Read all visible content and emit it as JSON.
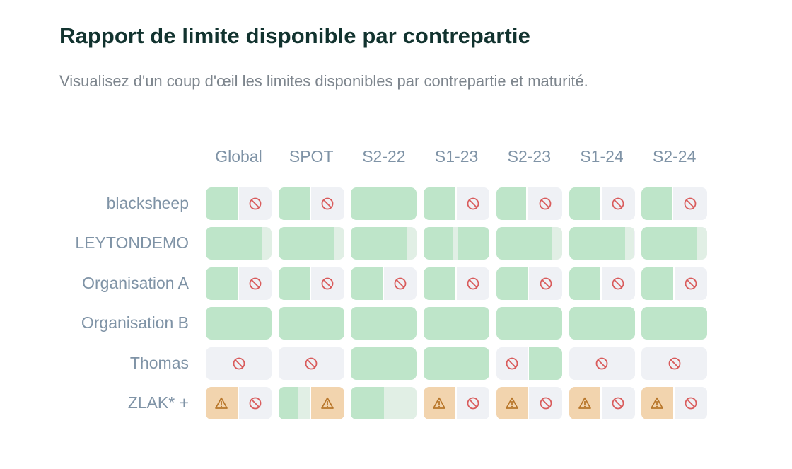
{
  "header": {
    "title": "Rapport de limite disponible par contrepartie",
    "subtitle": "Visualisez d'un coup d'œil les limites disponibles par contrepartie et maturité."
  },
  "columns": [
    "Global",
    "SPOT",
    "S2-22",
    "S1-23",
    "S2-23",
    "S1-24",
    "S2-24"
  ],
  "colors": {
    "available": "#bee5c9",
    "available_light": "#e1efe5",
    "warning": "#f2d4ae",
    "blocked": "#eff1f5",
    "blocked_icon": "#d95c5c",
    "warning_icon": "#b8762a"
  },
  "rows": [
    {
      "label": "blacksheep",
      "cells": [
        {
          "segments": [
            {
              "kind": "available",
              "share": 0.5
            },
            {
              "kind": "blocked",
              "share": 0.5,
              "icon": "blocked-icon"
            }
          ]
        },
        {
          "segments": [
            {
              "kind": "available",
              "share": 0.5
            },
            {
              "kind": "blocked",
              "share": 0.5,
              "icon": "blocked-icon"
            }
          ]
        },
        {
          "segments": [
            {
              "kind": "available",
              "share": 1
            }
          ]
        },
        {
          "segments": [
            {
              "kind": "available",
              "share": 0.5
            },
            {
              "kind": "blocked",
              "share": 0.5,
              "icon": "blocked-icon"
            }
          ]
        },
        {
          "segments": [
            {
              "kind": "available",
              "share": 0.48
            },
            {
              "kind": "blocked",
              "share": 0.52,
              "icon": "blocked-icon"
            }
          ]
        },
        {
          "segments": [
            {
              "kind": "available",
              "share": 0.5
            },
            {
              "kind": "blocked",
              "share": 0.5,
              "icon": "blocked-icon"
            }
          ]
        },
        {
          "segments": [
            {
              "kind": "available",
              "share": 0.48
            },
            {
              "kind": "blocked",
              "share": 0.52,
              "icon": "blocked-icon"
            }
          ]
        }
      ]
    },
    {
      "label": "LEYTONDEMO",
      "cells": [
        {
          "segments": [
            {
              "kind": "available",
              "share": 0.85
            },
            {
              "kind": "available_light",
              "share": 0.15
            }
          ]
        },
        {
          "segments": [
            {
              "kind": "available",
              "share": 0.85
            },
            {
              "kind": "available_light",
              "share": 0.15
            }
          ]
        },
        {
          "segments": [
            {
              "kind": "available",
              "share": 0.85
            },
            {
              "kind": "available_light",
              "share": 0.15
            }
          ]
        },
        {
          "segments": [
            {
              "kind": "available",
              "share": 0.44
            },
            {
              "kind": "available_light",
              "share": 0.08
            },
            {
              "kind": "available",
              "share": 0.48
            }
          ]
        },
        {
          "segments": [
            {
              "kind": "available",
              "share": 0.85
            },
            {
              "kind": "available_light",
              "share": 0.15
            }
          ]
        },
        {
          "segments": [
            {
              "kind": "available",
              "share": 0.85
            },
            {
              "kind": "available_light",
              "share": 0.15
            }
          ]
        },
        {
          "segments": [
            {
              "kind": "available",
              "share": 0.85
            },
            {
              "kind": "available_light",
              "share": 0.15
            }
          ]
        }
      ]
    },
    {
      "label": "Organisation A",
      "cells": [
        {
          "segments": [
            {
              "kind": "available",
              "share": 0.5
            },
            {
              "kind": "blocked",
              "share": 0.5,
              "icon": "blocked-icon"
            }
          ]
        },
        {
          "segments": [
            {
              "kind": "available",
              "share": 0.5
            },
            {
              "kind": "blocked",
              "share": 0.5,
              "icon": "blocked-icon"
            }
          ]
        },
        {
          "segments": [
            {
              "kind": "available",
              "share": 0.5
            },
            {
              "kind": "blocked",
              "share": 0.5,
              "icon": "blocked-icon"
            }
          ]
        },
        {
          "segments": [
            {
              "kind": "available",
              "share": 0.5
            },
            {
              "kind": "blocked",
              "share": 0.5,
              "icon": "blocked-icon"
            }
          ]
        },
        {
          "segments": [
            {
              "kind": "available",
              "share": 0.5
            },
            {
              "kind": "blocked",
              "share": 0.5,
              "icon": "blocked-icon"
            }
          ]
        },
        {
          "segments": [
            {
              "kind": "available",
              "share": 0.5
            },
            {
              "kind": "blocked",
              "share": 0.5,
              "icon": "blocked-icon"
            }
          ]
        },
        {
          "segments": [
            {
              "kind": "available",
              "share": 0.5
            },
            {
              "kind": "blocked",
              "share": 0.5,
              "icon": "blocked-icon"
            }
          ]
        }
      ]
    },
    {
      "label": "Organisation B",
      "cells": [
        {
          "segments": [
            {
              "kind": "available",
              "share": 1
            }
          ]
        },
        {
          "segments": [
            {
              "kind": "available",
              "share": 1
            }
          ]
        },
        {
          "segments": [
            {
              "kind": "available",
              "share": 1
            }
          ]
        },
        {
          "segments": [
            {
              "kind": "available",
              "share": 1
            }
          ]
        },
        {
          "segments": [
            {
              "kind": "available",
              "share": 1
            }
          ]
        },
        {
          "segments": [
            {
              "kind": "available",
              "share": 1
            }
          ]
        },
        {
          "segments": [
            {
              "kind": "available",
              "share": 1
            }
          ]
        }
      ]
    },
    {
      "label": "Thomas",
      "cells": [
        {
          "segments": [
            {
              "kind": "blocked",
              "share": 1,
              "icon": "blocked-icon"
            }
          ]
        },
        {
          "segments": [
            {
              "kind": "blocked",
              "share": 1,
              "icon": "blocked-icon"
            }
          ]
        },
        {
          "segments": [
            {
              "kind": "available",
              "share": 1
            }
          ]
        },
        {
          "segments": [
            {
              "kind": "available",
              "share": 1
            }
          ]
        },
        {
          "segments": [
            {
              "kind": "blocked",
              "share": 0.5,
              "icon": "blocked-icon"
            },
            {
              "kind": "available",
              "share": 0.5
            }
          ]
        },
        {
          "segments": [
            {
              "kind": "blocked",
              "share": 1,
              "icon": "blocked-icon"
            }
          ]
        },
        {
          "segments": [
            {
              "kind": "blocked",
              "share": 1,
              "icon": "blocked-icon"
            }
          ]
        }
      ]
    },
    {
      "label": "ZLAK* +",
      "cells": [
        {
          "segments": [
            {
              "kind": "warning",
              "share": 0.5,
              "icon": "warning-icon"
            },
            {
              "kind": "blocked",
              "share": 0.5,
              "icon": "blocked-icon"
            }
          ]
        },
        {
          "segments": [
            {
              "kind": "available",
              "share": 0.3
            },
            {
              "kind": "available_light",
              "share": 0.2
            },
            {
              "kind": "warning",
              "share": 0.5,
              "icon": "warning-icon"
            }
          ]
        },
        {
          "segments": [
            {
              "kind": "available",
              "share": 0.5
            },
            {
              "kind": "available_light",
              "share": 0.5
            }
          ]
        },
        {
          "segments": [
            {
              "kind": "warning",
              "share": 0.5,
              "icon": "warning-icon"
            },
            {
              "kind": "blocked",
              "share": 0.5,
              "icon": "blocked-icon"
            }
          ]
        },
        {
          "segments": [
            {
              "kind": "warning",
              "share": 0.5,
              "icon": "warning-icon"
            },
            {
              "kind": "blocked",
              "share": 0.5,
              "icon": "blocked-icon"
            }
          ]
        },
        {
          "segments": [
            {
              "kind": "warning",
              "share": 0.5,
              "icon": "warning-icon"
            },
            {
              "kind": "blocked",
              "share": 0.5,
              "icon": "blocked-icon"
            }
          ]
        },
        {
          "segments": [
            {
              "kind": "warning",
              "share": 0.5,
              "icon": "warning-icon"
            },
            {
              "kind": "blocked",
              "share": 0.5,
              "icon": "blocked-icon"
            }
          ]
        }
      ]
    }
  ]
}
